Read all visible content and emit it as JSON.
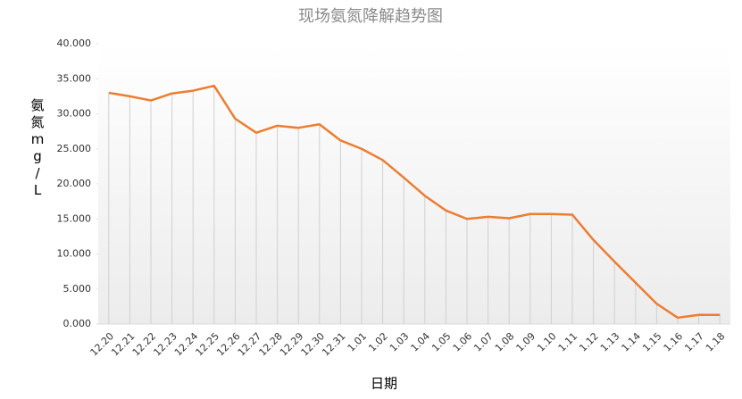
{
  "chart_data": {
    "type": "line",
    "title": "现场氨氮降解趋势图",
    "x_label": "日期",
    "y_label": "氨氮mg/L",
    "categories": [
      "12.20",
      "12.21",
      "12.22",
      "12.23",
      "12.24",
      "12.25",
      "12.26",
      "12.27",
      "12.28",
      "12.29",
      "12.30",
      "12.31",
      "1.01",
      "1.02",
      "1.03",
      "1.04",
      "1.05",
      "1.06",
      "1.07",
      "1.08",
      "1.09",
      "1.10",
      "1.11",
      "1.12",
      "1.13",
      "1.14",
      "1.15",
      "1.16",
      "1.17",
      "1.18"
    ],
    "values": [
      33.0,
      32.5,
      31.9,
      32.9,
      33.3,
      34.0,
      29.3,
      27.3,
      28.3,
      28.0,
      28.5,
      26.2,
      25.0,
      23.4,
      20.9,
      18.3,
      16.2,
      15.0,
      15.3,
      15.1,
      15.7,
      15.7,
      15.6,
      12.0,
      8.9,
      5.9,
      2.9,
      0.9,
      1.3,
      1.3
    ],
    "color": "#ed7d31",
    "ylim": [
      0,
      40
    ],
    "yticks": [
      {
        "value": 0,
        "label": "0.000"
      },
      {
        "value": 5,
        "label": "5.000"
      },
      {
        "value": 10,
        "label": "10.000"
      },
      {
        "value": 15,
        "label": "15.000"
      },
      {
        "value": 20,
        "label": "20.000"
      },
      {
        "value": 25,
        "label": "25.000"
      },
      {
        "value": 30,
        "label": "30.000"
      },
      {
        "value": 35,
        "label": "35.000"
      },
      {
        "value": 40,
        "label": "40.000"
      }
    ],
    "drop_lines": true
  }
}
